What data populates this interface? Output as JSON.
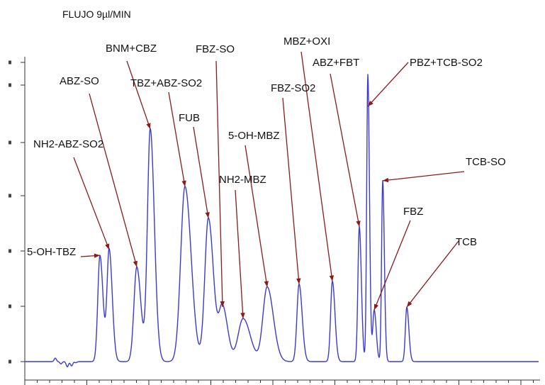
{
  "chart_data": {
    "type": "line",
    "title": "FLUJO  9µl/MIN",
    "xlabel": "",
    "ylabel": "",
    "grid": false,
    "y_axis_tick_labels_legible": false,
    "line_color": "#3a3ad0",
    "arrow_color": "#8b1a1a",
    "baseline": 0.0,
    "baseline_noise": [
      {
        "x": 78,
        "y": 0.012
      },
      {
        "x": 86,
        "y": -0.008
      },
      {
        "x": 95,
        "y": -0.018
      },
      {
        "x": 101,
        "y": -0.015
      },
      {
        "x": 107,
        "y": -0.004
      }
    ],
    "peaks": [
      {
        "id": "p1",
        "x": 141,
        "height": 0.37,
        "width": 3
      },
      {
        "id": "p2",
        "x": 154,
        "height": 0.39,
        "width": 3
      },
      {
        "id": "p3",
        "x": 193,
        "height": 0.33,
        "width": 4
      },
      {
        "id": "p4",
        "x": 212,
        "height": 0.81,
        "width": 4
      },
      {
        "id": "p5",
        "x": 261,
        "height": 0.61,
        "width": 6
      },
      {
        "id": "p6",
        "x": 294,
        "height": 0.5,
        "width": 5
      },
      {
        "id": "p7",
        "x": 314,
        "height": 0.19,
        "width": 5
      },
      {
        "id": "p8",
        "x": 343,
        "height": 0.15,
        "width": 7
      },
      {
        "id": "p9",
        "x": 377,
        "height": 0.26,
        "width": 6
      },
      {
        "id": "p10",
        "x": 422,
        "height": 0.27,
        "width": 3
      },
      {
        "id": "p11",
        "x": 469,
        "height": 0.28,
        "width": 2.5
      },
      {
        "id": "p12",
        "x": 507,
        "height": 0.47,
        "width": 2
      },
      {
        "id": "p13",
        "x": 519,
        "height": 1.0,
        "width": 1.6
      },
      {
        "id": "p14",
        "x": 528,
        "height": 0.18,
        "width": 2
      },
      {
        "id": "p15",
        "x": 540,
        "height": 0.63,
        "width": 1.6
      },
      {
        "id": "p16",
        "x": 574,
        "height": 0.19,
        "width": 2
      }
    ],
    "annotations": [
      {
        "id": "a1",
        "text": "5-OH-TBZ",
        "peak": "p1"
      },
      {
        "id": "a2",
        "text": "NH2-ABZ-SO2",
        "peak": "p2"
      },
      {
        "id": "a3",
        "text": "ABZ-SO",
        "peak": "p3"
      },
      {
        "id": "a4",
        "text": "BNM+CBZ",
        "peak": "p4"
      },
      {
        "id": "a5",
        "text": "TBZ+ABZ-SO2",
        "peak": "p5"
      },
      {
        "id": "a6",
        "text": "FUB",
        "peak": "p6"
      },
      {
        "id": "a7",
        "text": "FBZ-SO",
        "peak": "p7"
      },
      {
        "id": "a8",
        "text": "NH2-MBZ",
        "peak": "p8"
      },
      {
        "id": "a9",
        "text": "5-OH-MBZ",
        "peak": "p9"
      },
      {
        "id": "a10",
        "text": "FBZ-SO2",
        "peak": "p10"
      },
      {
        "id": "a11",
        "text": "MBZ+OXI",
        "peak": "p11"
      },
      {
        "id": "a12",
        "text": "ABZ+FBT",
        "peak": "p12"
      },
      {
        "id": "a13",
        "text": "PBZ+TCB-SO2",
        "peak": "p13"
      },
      {
        "id": "a14",
        "text": "TCB-SO",
        "peak": "p15"
      },
      {
        "id": "a15",
        "text": "FBZ",
        "peak": "p14"
      },
      {
        "id": "a16",
        "text": "TCB",
        "peak": "p16"
      }
    ]
  }
}
